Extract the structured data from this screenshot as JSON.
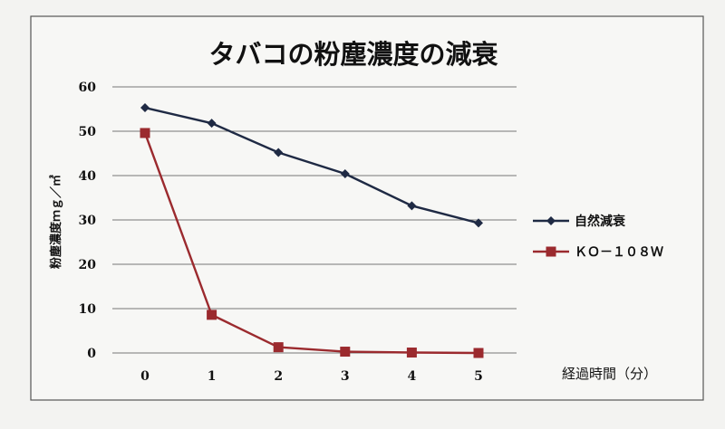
{
  "chart_data": {
    "type": "line",
    "title": "タバコの粉塵濃度の減衰",
    "xlabel": "経過時間（分）",
    "ylabel": "粉塵濃度ｍｇ／㎥",
    "categories": [
      "0",
      "1",
      "2",
      "3",
      "4",
      "5"
    ],
    "ylim": [
      0,
      60
    ],
    "yticks": [
      0,
      10,
      20,
      30,
      40,
      50,
      60
    ],
    "grid": true,
    "legend_position": "right",
    "series": [
      {
        "name": "自然減衰",
        "color": "#1f2a44",
        "marker": "diamond",
        "values": [
          55.3,
          51.8,
          45.2,
          40.4,
          33.2,
          29.3
        ]
      },
      {
        "name": "ＫＯ－１０８Ｗ",
        "color": "#9b2a2e",
        "marker": "square",
        "values": [
          49.6,
          8.6,
          1.3,
          0.3,
          0.1,
          0.0
        ]
      }
    ]
  }
}
